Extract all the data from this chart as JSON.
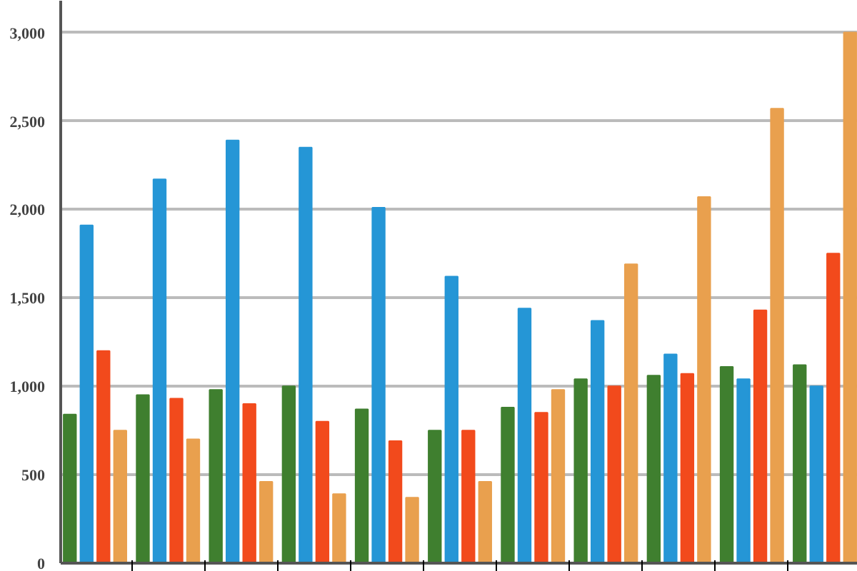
{
  "chart_data": {
    "type": "bar",
    "categories": [
      null,
      null,
      null,
      null,
      null,
      null,
      null,
      null,
      null,
      null,
      null
    ],
    "series": [
      {
        "color": "#3f7f2f",
        "values": [
          840,
          950,
          980,
          1000,
          870,
          750,
          880,
          1040,
          1060,
          1110,
          1120
        ]
      },
      {
        "color": "#2596d6",
        "values": [
          1910,
          2170,
          2390,
          2350,
          2010,
          1620,
          1440,
          1370,
          1180,
          1040,
          1000
        ]
      },
      {
        "color": "#f24a1c",
        "values": [
          1200,
          930,
          900,
          800,
          690,
          750,
          850,
          1000,
          1070,
          1430,
          1750
        ]
      },
      {
        "color": "#e9a04e",
        "values": [
          750,
          700,
          460,
          390,
          370,
          460,
          980,
          1690,
          2070,
          2570,
          3000
        ]
      }
    ],
    "ylim": [
      0,
      3180
    ],
    "yticks": [
      {
        "value": 0,
        "label": "0"
      },
      {
        "value": 500,
        "label": "500"
      },
      {
        "value": 1000,
        "label": "1,000"
      },
      {
        "value": 1500,
        "label": "1,500"
      },
      {
        "value": 2000,
        "label": "2,000"
      },
      {
        "value": 2500,
        "label": "2,500"
      },
      {
        "value": 3000,
        "label": "3,000"
      }
    ],
    "grid": "y"
  }
}
